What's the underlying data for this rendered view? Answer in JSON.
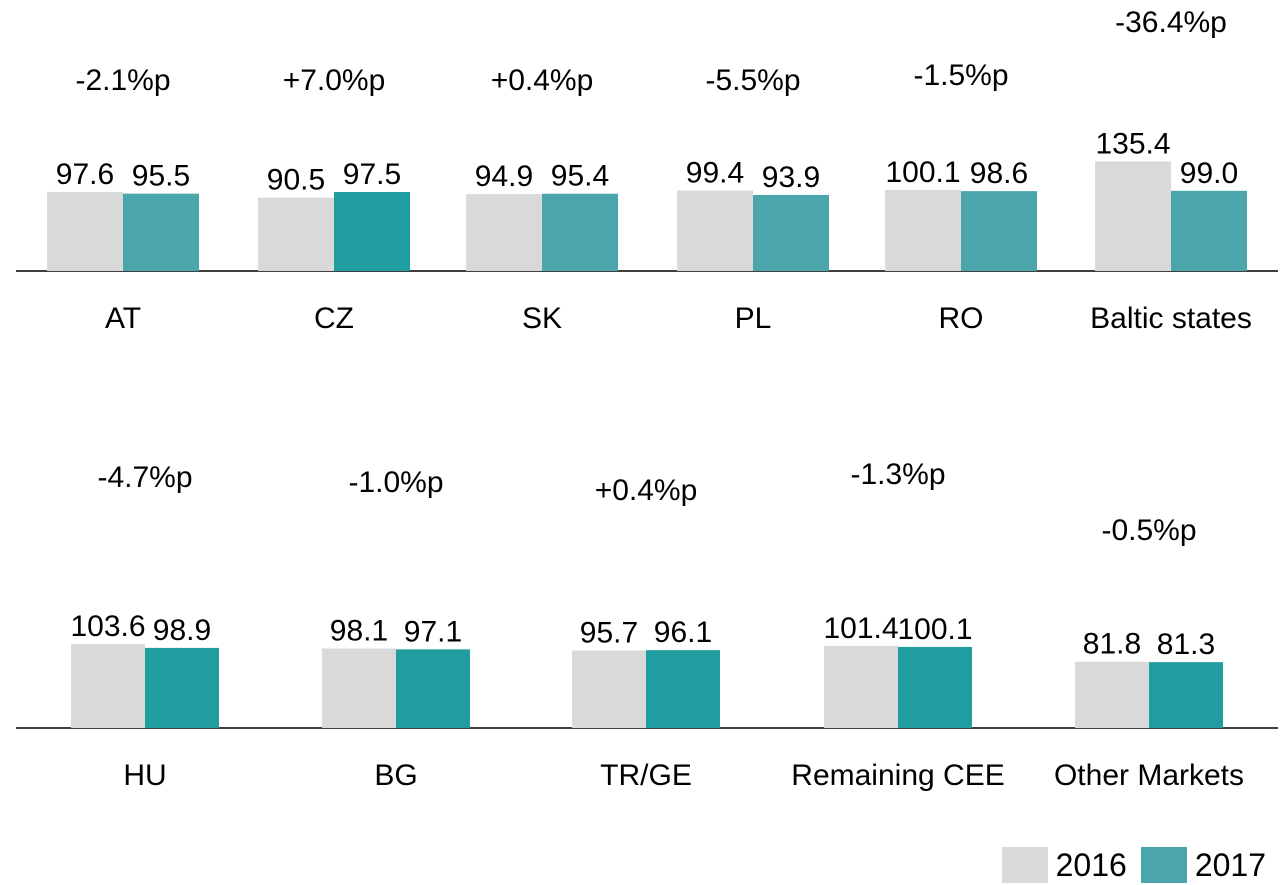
{
  "chart_data": [
    {
      "type": "bar",
      "categories": [
        "AT",
        "CZ",
        "SK",
        "PL",
        "RO",
        "Baltic states"
      ],
      "series": [
        {
          "name": "2016",
          "values": [
            97.6,
            90.5,
            94.9,
            99.4,
            100.1,
            135.4
          ]
        },
        {
          "name": "2017",
          "values": [
            95.5,
            97.5,
            95.4,
            93.9,
            98.6,
            99.0
          ]
        }
      ],
      "value_labels": {
        "2016": [
          "97.6",
          "90.5",
          "94.9",
          "99.4",
          "100.1",
          "135.4"
        ],
        "2017": [
          "95.5",
          "97.5",
          "95.4",
          "93.9",
          "98.6",
          "99.0"
        ]
      },
      "annotations": [
        "-2.1%p",
        "+7.0%p",
        "+0.4%p",
        "-5.5%p",
        "-1.5%p",
        "-36.4%p"
      ],
      "bar_colors_2017": [
        "#4aa6aa",
        "#209d9f",
        "#4aa6aa",
        "#4aa6aa",
        "#4aa6aa",
        "#4aa6aa"
      ]
    },
    {
      "type": "bar",
      "categories": [
        "HU",
        "BG",
        "TR/GE",
        "Remaining CEE",
        "Other Markets"
      ],
      "series": [
        {
          "name": "2016",
          "values": [
            103.6,
            98.1,
            95.7,
            101.4,
            81.8
          ]
        },
        {
          "name": "2017",
          "values": [
            98.9,
            97.1,
            96.1,
            100.1,
            81.3
          ]
        }
      ],
      "value_labels": {
        "2016": [
          "103.6",
          "98.1",
          "95.7",
          "101.4",
          "81.8"
        ],
        "2017": [
          "98.9",
          "97.1",
          "96.1",
          "100.1",
          "81.3"
        ]
      },
      "annotations": [
        "-4.7%p",
        "-1.0%p",
        "+0.4%p",
        "-1.3%p",
        "-0.5%p"
      ],
      "bar_colors_2017": [
        "#209d9f",
        "#209d9f",
        "#209d9f",
        "#209d9f",
        "#209d9f"
      ]
    }
  ],
  "colors": {
    "bar_2016": "#d9d9da",
    "axis": "#000000"
  },
  "legend": [
    {
      "label": "2016",
      "color": "#d9d9da"
    },
    {
      "label": "2017",
      "color": "#4aa6aa"
    }
  ]
}
